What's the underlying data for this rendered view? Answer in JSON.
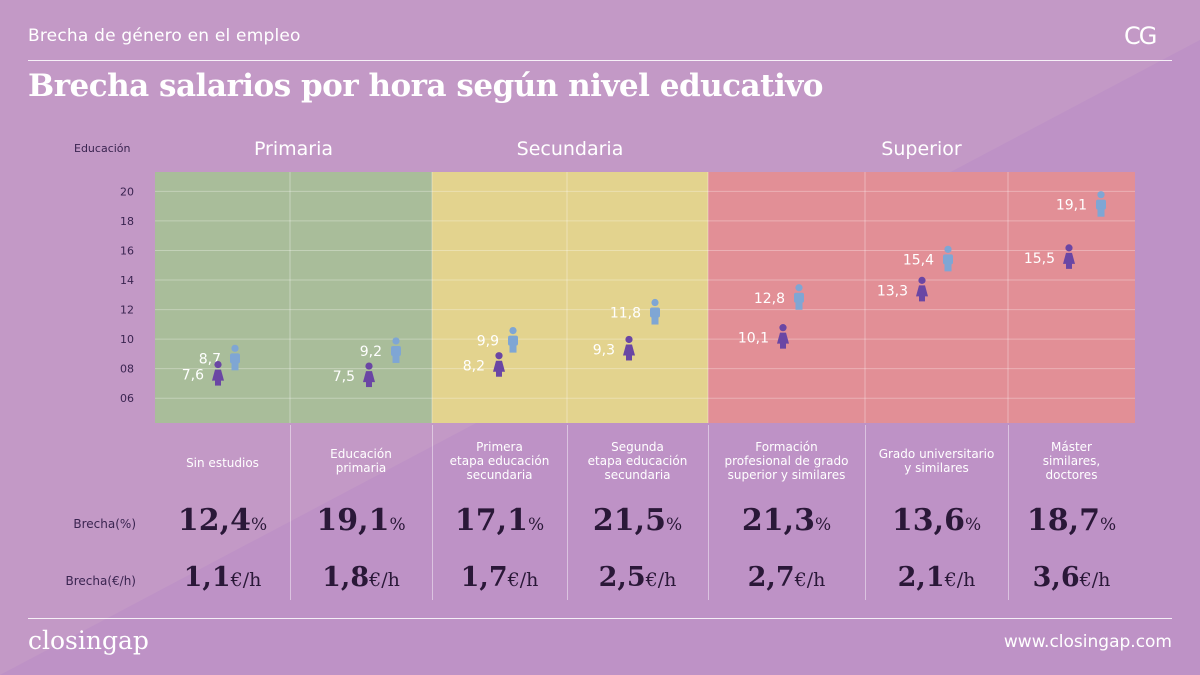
{
  "header": {
    "section": "Brecha de género en el empleo",
    "logo": "CG",
    "title": "Brecha salarios por hora según nivel educativo"
  },
  "footer": {
    "brand": "closingap",
    "url": "www.closingap.com"
  },
  "colors": {
    "background": "#c399c6",
    "primaria": "#a9bd9a",
    "secundaria": "#e3d38e",
    "superior": "#e28f96",
    "hombre": "#7fa6d4",
    "mujer": "#6a46a4",
    "numbers": "#2a1838"
  },
  "icons": {
    "men": "man-icon",
    "women": "woman-icon"
  },
  "chart_data": {
    "type": "scatter",
    "ylabel": "Educación",
    "ylim": [
      5,
      20.5
    ],
    "yticks": [
      "06",
      "08",
      "10",
      "12",
      "14",
      "16",
      "18",
      "20"
    ],
    "ytick_values": [
      6,
      8,
      10,
      12,
      14,
      16,
      18,
      20
    ],
    "groups": [
      {
        "name": "Primaria",
        "span": [
          0,
          1
        ]
      },
      {
        "name": "Secundaria",
        "span": [
          2,
          3
        ]
      },
      {
        "name": "Superior",
        "span": [
          4,
          6
        ]
      }
    ],
    "categories": [
      "Sin estudios",
      "Educación\nprimaria",
      "Primera\netapa educación\nsecundaria",
      "Segunda\netapa educación\nsecundaria",
      "Formación\nprofesional  de grado\nsuperior y similares",
      "Grado universitario\ny similares",
      "Máster\nsimilares,\ndoctores"
    ],
    "series": [
      {
        "values": [
          8.7,
          9.2,
          9.9,
          11.8,
          12.8,
          15.4,
          19.1
        ],
        "labels": [
          "8,7",
          "9,2",
          "9,9",
          "11,8",
          "12,8",
          "15,4",
          "19,1"
        ]
      },
      {
        "values": [
          7.6,
          7.5,
          8.2,
          9.3,
          10.1,
          13.3,
          15.5
        ],
        "labels": [
          "7,6",
          "7,5",
          "8,2",
          "9,3",
          "10,1",
          "13,3",
          "15,5"
        ]
      }
    ],
    "rows": [
      {
        "label": "Brecha(%)",
        "unit": "%",
        "values": [
          "12,4",
          "19,1",
          "17,1",
          "21,5",
          "21,3",
          "13,6",
          "18,7"
        ]
      },
      {
        "label": "Brecha(€/h)",
        "unit": "€/h",
        "values": [
          "1,1",
          "1,8",
          "1,7",
          "2,5",
          "2,7",
          "2,1",
          "3,6"
        ]
      }
    ]
  }
}
